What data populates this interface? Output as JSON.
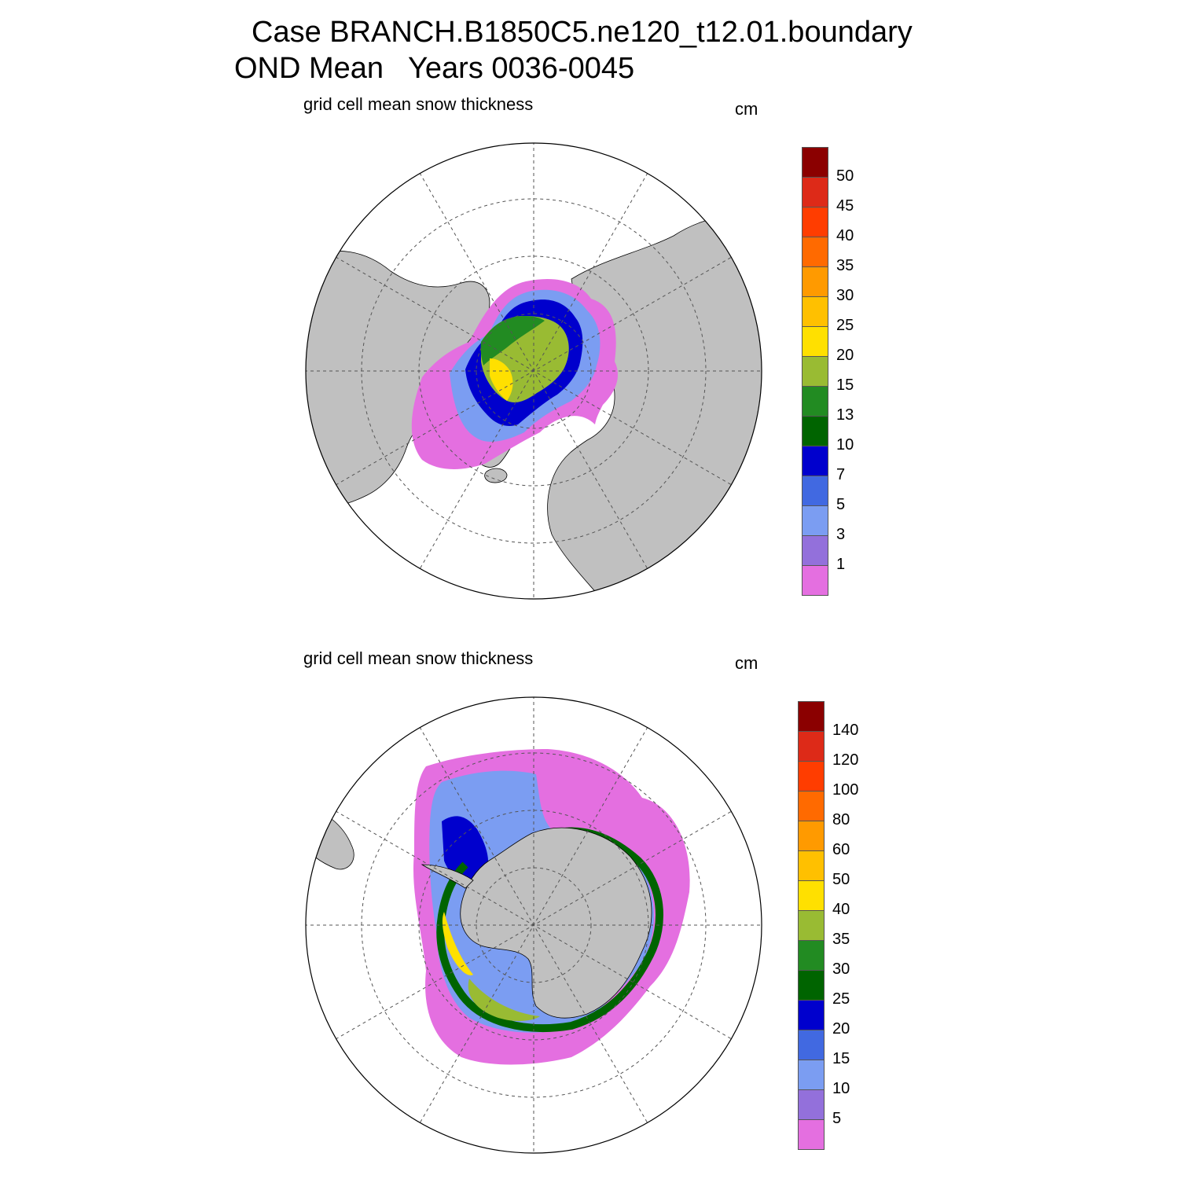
{
  "header": {
    "case_line": "Case BRANCH.B1850C5.ne120_t12.01.boundary",
    "season_line": "OND Mean   Years 0036-0045"
  },
  "panels": [
    {
      "id": "north",
      "label": "grid cell mean snow thickness",
      "units": "cm",
      "colorbar": {
        "colors": [
          "#e46fe0",
          "#9370db",
          "#7b9df2",
          "#4169e1",
          "#0000cd",
          "#006400",
          "#228b22",
          "#99bb33",
          "#ffe000",
          "#ffc000",
          "#ff9a00",
          "#ff6a00",
          "#ff3d00",
          "#dd2a18",
          "#8b0000"
        ],
        "tick_labels": [
          "1",
          "3",
          "5",
          "7",
          "10",
          "13",
          "15",
          "20",
          "25",
          "30",
          "35",
          "40",
          "45",
          "50"
        ]
      }
    },
    {
      "id": "south",
      "label": "grid cell mean snow thickness",
      "units": "cm",
      "colorbar": {
        "colors": [
          "#e46fe0",
          "#9370db",
          "#7b9df2",
          "#4169e1",
          "#0000cd",
          "#006400",
          "#228b22",
          "#99bb33",
          "#ffe000",
          "#ffc000",
          "#ff9a00",
          "#ff6a00",
          "#ff3d00",
          "#dd2a18",
          "#8b0000"
        ],
        "tick_labels": [
          "5",
          "10",
          "15",
          "20",
          "25",
          "30",
          "35",
          "40",
          "50",
          "60",
          "80",
          "100",
          "120",
          "140"
        ]
      }
    }
  ],
  "colors": {
    "land": "#c0c0c0",
    "ocean": "#ffffff",
    "grid": "#555555"
  }
}
